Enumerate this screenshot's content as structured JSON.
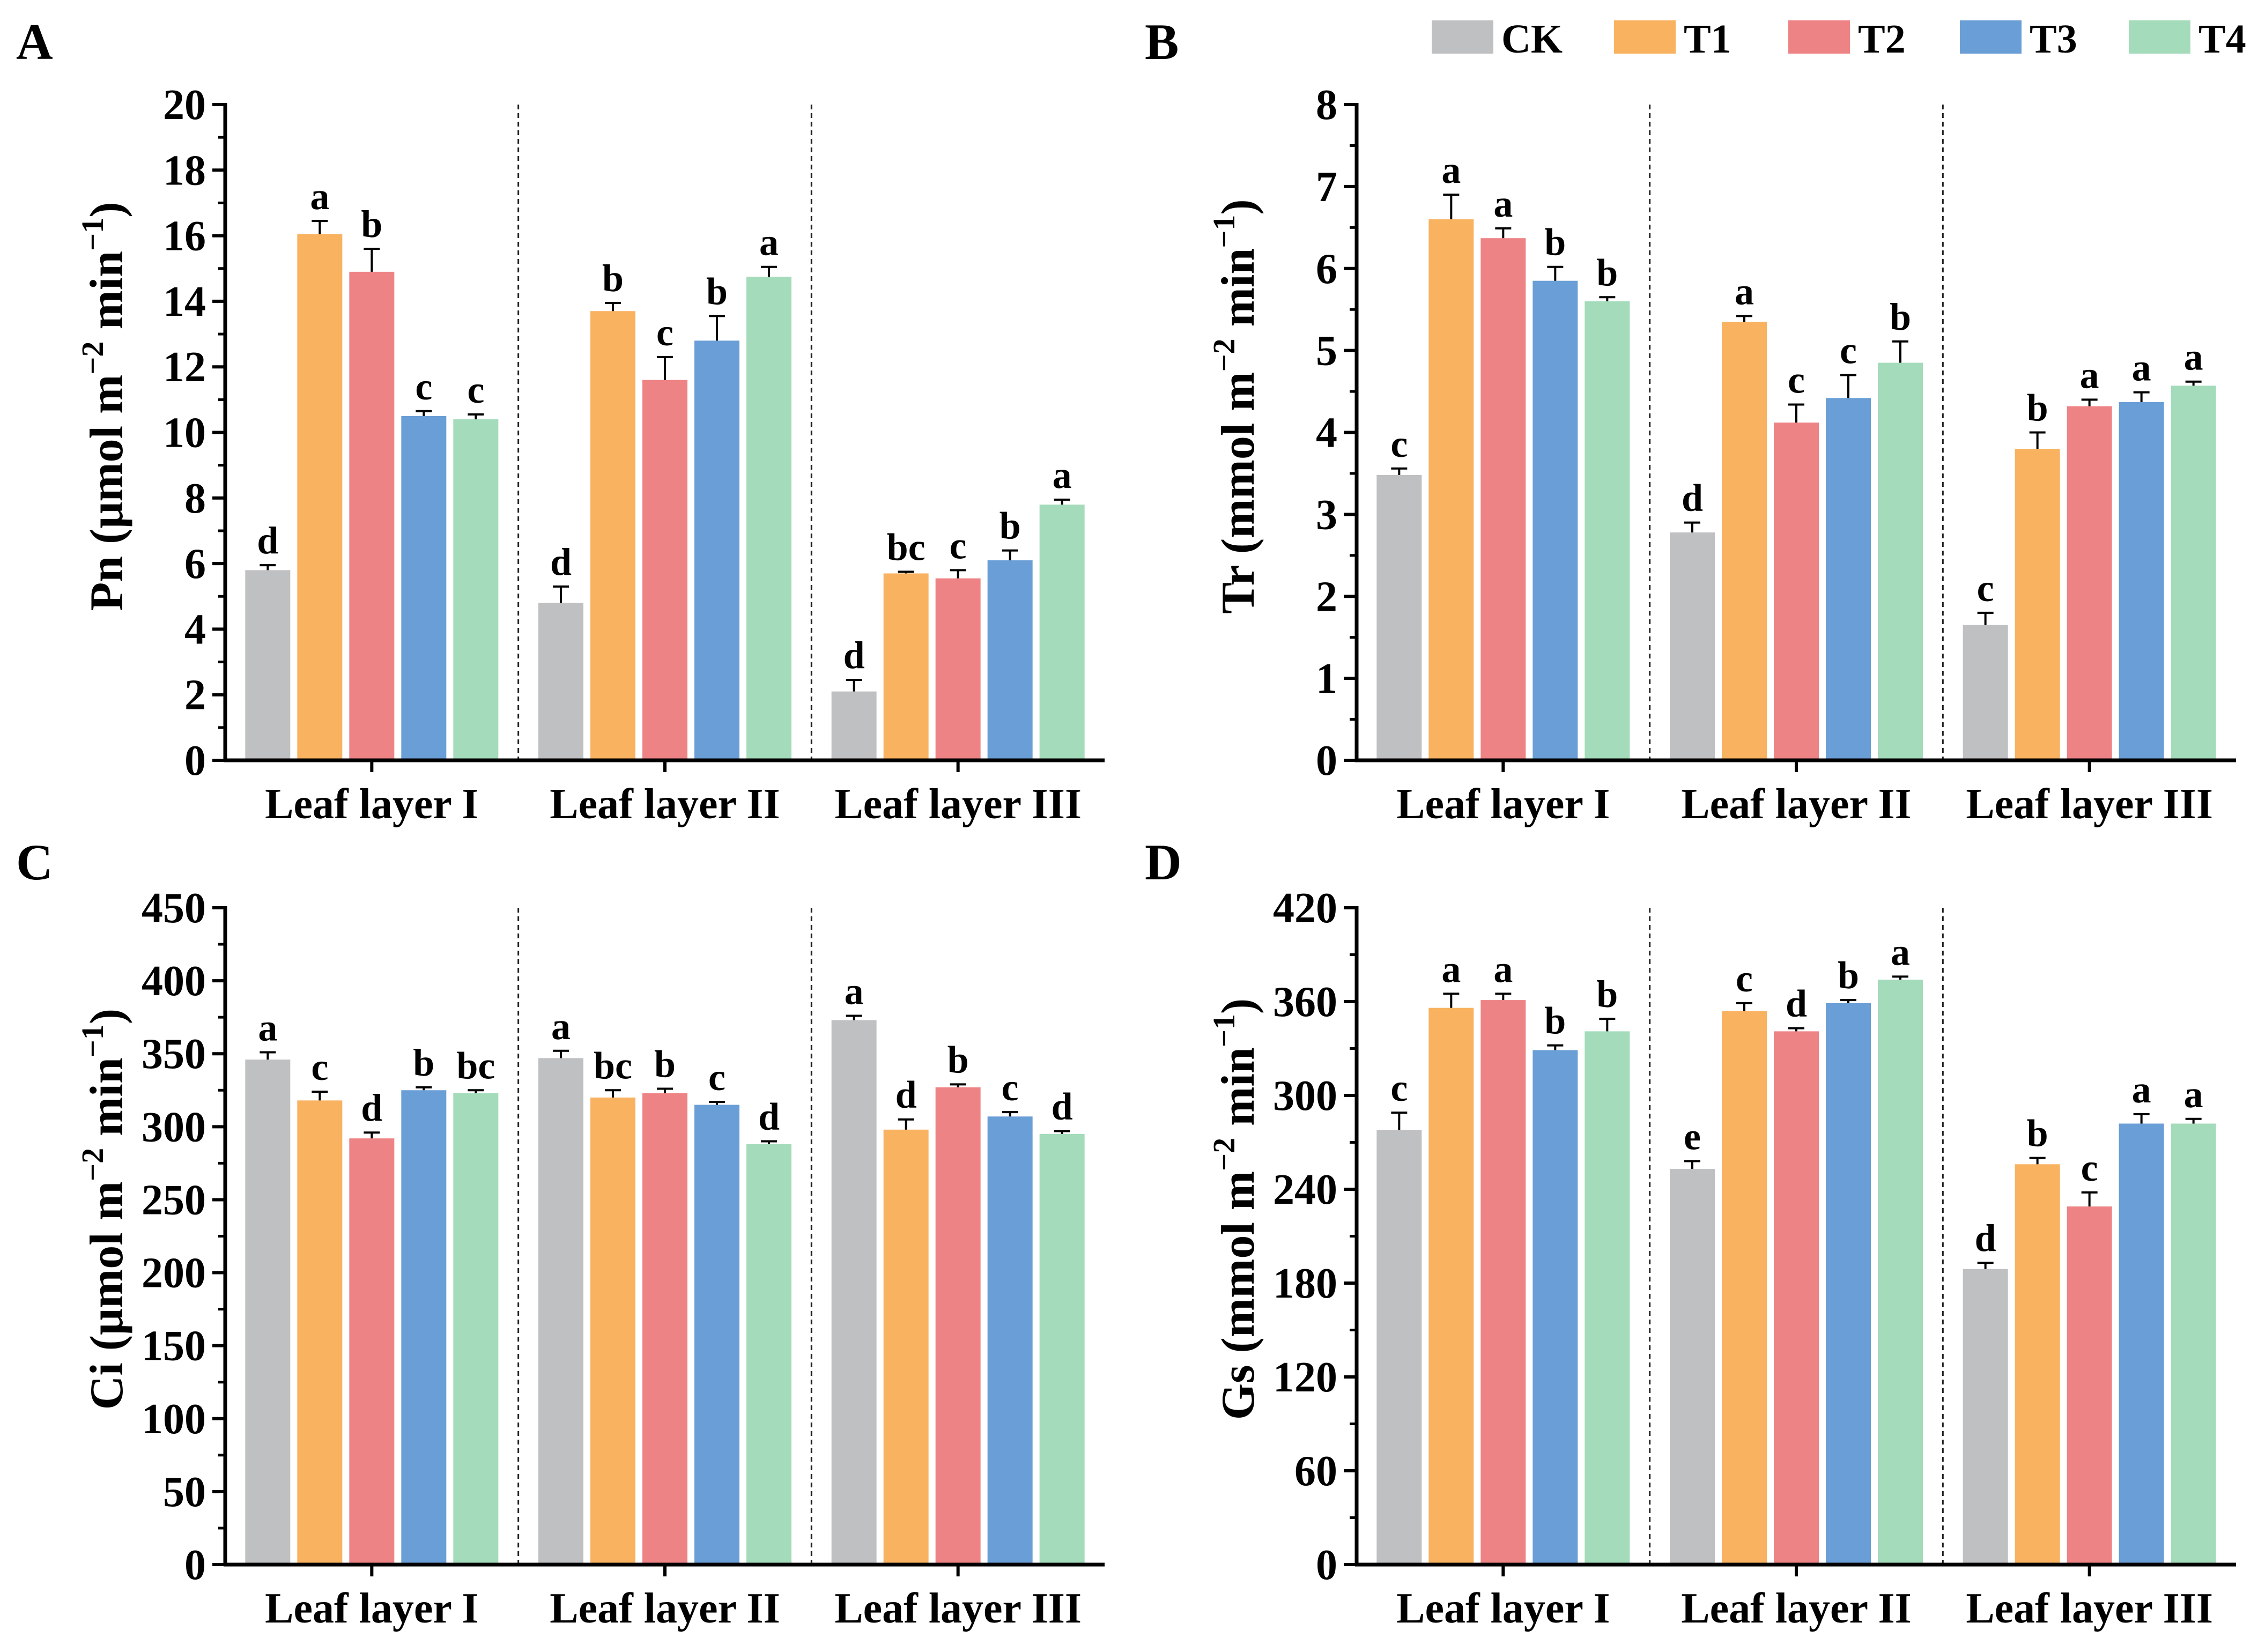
{
  "legend": [
    {
      "name": "CK",
      "color": "#BFC0C2"
    },
    {
      "name": "T1",
      "color": "#F9B260"
    },
    {
      "name": "T2",
      "color": "#EE8385"
    },
    {
      "name": "T3",
      "color": "#6A9ED6"
    },
    {
      "name": "T4",
      "color": "#A3DBBB"
    }
  ],
  "chart_data": [
    {
      "type": "bar",
      "panel": "A",
      "ylabel_main": "Pn (μmol m",
      "ylabel_sup1": "−2",
      "ylabel_mid": " min",
      "ylabel_sup2": "−1",
      "ylabel_end": ")",
      "ylim": [
        0,
        20
      ],
      "yticks": [
        0,
        2,
        4,
        6,
        8,
        10,
        12,
        14,
        16,
        18,
        20
      ],
      "yticklabels": [
        "0",
        "2",
        "4",
        "6",
        "8",
        "10",
        "12",
        "14",
        "16",
        "18",
        "20"
      ],
      "categories": [
        "Leaf layer I",
        "Leaf layer II",
        "Leaf layer III"
      ],
      "series": [
        {
          "name": "CK",
          "values": [
            5.8,
            4.8,
            2.1
          ],
          "errors": [
            0.15,
            0.5,
            0.35
          ],
          "letters": [
            "d",
            "d",
            "d"
          ]
        },
        {
          "name": "T1",
          "values": [
            16.05,
            13.7,
            5.7
          ],
          "errors": [
            0.4,
            0.25,
            0.05
          ],
          "letters": [
            "a",
            "b",
            "bc"
          ]
        },
        {
          "name": "T2",
          "values": [
            14.9,
            11.6,
            5.55
          ],
          "errors": [
            0.7,
            0.7,
            0.25
          ],
          "letters": [
            "b",
            "c",
            "c"
          ]
        },
        {
          "name": "T3",
          "values": [
            10.5,
            12.8,
            6.1
          ],
          "errors": [
            0.15,
            0.75,
            0.3
          ],
          "letters": [
            "c",
            "b",
            "b"
          ]
        },
        {
          "name": "T4",
          "values": [
            10.4,
            14.75,
            7.8
          ],
          "errors": [
            0.15,
            0.3,
            0.15
          ],
          "letters": [
            "c",
            "a",
            "a"
          ]
        }
      ]
    },
    {
      "type": "bar",
      "panel": "B",
      "ylabel_main": "Tr (mmol m",
      "ylabel_sup1": "−2",
      "ylabel_mid": " min",
      "ylabel_sup2": "−1",
      "ylabel_end": ")",
      "ylim": [
        0,
        8
      ],
      "yticks": [
        0,
        1,
        2,
        3,
        4,
        5,
        6,
        7,
        8
      ],
      "yticklabels": [
        "0",
        "1",
        "2",
        "3",
        "4",
        "5",
        "6",
        "7",
        "8"
      ],
      "categories": [
        "Leaf layer I",
        "Leaf layer II",
        "Leaf layer III"
      ],
      "series": [
        {
          "name": "CK",
          "values": [
            3.48,
            2.78,
            1.65
          ],
          "errors": [
            0.08,
            0.12,
            0.15
          ],
          "letters": [
            "c",
            "d",
            "c"
          ]
        },
        {
          "name": "T1",
          "values": [
            6.6,
            5.35,
            3.8
          ],
          "errors": [
            0.3,
            0.07,
            0.2
          ],
          "letters": [
            "a",
            "a",
            "b"
          ]
        },
        {
          "name": "T2",
          "values": [
            6.37,
            4.12,
            4.32
          ],
          "errors": [
            0.12,
            0.22,
            0.08
          ],
          "letters": [
            "a",
            "c",
            "a"
          ]
        },
        {
          "name": "T3",
          "values": [
            5.85,
            4.42,
            4.37
          ],
          "errors": [
            0.17,
            0.28,
            0.12
          ],
          "letters": [
            "b",
            "c",
            "a"
          ]
        },
        {
          "name": "T4",
          "values": [
            5.6,
            4.85,
            4.57
          ],
          "errors": [
            0.05,
            0.26,
            0.05
          ],
          "letters": [
            "b",
            "b",
            "a"
          ]
        }
      ]
    },
    {
      "type": "bar",
      "panel": "C",
      "ylabel_main": "Ci (μmol m",
      "ylabel_sup1": "−2",
      "ylabel_mid": " min",
      "ylabel_sup2": "−1",
      "ylabel_end": ")",
      "ylim": [
        0,
        450
      ],
      "yticks": [
        0,
        50,
        100,
        150,
        200,
        250,
        300,
        350,
        400,
        450
      ],
      "yticklabels": [
        "0",
        "50",
        "100",
        "150",
        "200",
        "250",
        "300",
        "350",
        "400",
        "450"
      ],
      "categories": [
        "Leaf layer I",
        "Leaf layer II",
        "Leaf layer III"
      ],
      "series": [
        {
          "name": "CK",
          "values": [
            346,
            347,
            373
          ],
          "errors": [
            5,
            5,
            3
          ],
          "letters": [
            "a",
            "a",
            "a"
          ]
        },
        {
          "name": "T1",
          "values": [
            318,
            320,
            298
          ],
          "errors": [
            6,
            5,
            7
          ],
          "letters": [
            "c",
            "bc",
            "d"
          ]
        },
        {
          "name": "T2",
          "values": [
            292,
            323,
            327
          ],
          "errors": [
            4,
            3,
            2
          ],
          "letters": [
            "d",
            "b",
            "b"
          ]
        },
        {
          "name": "T3",
          "values": [
            325,
            315,
            307
          ],
          "errors": [
            2,
            2,
            3
          ],
          "letters": [
            "b",
            "c",
            "c"
          ]
        },
        {
          "name": "T4",
          "values": [
            323,
            288,
            295
          ],
          "errors": [
            2,
            2,
            2
          ],
          "letters": [
            "bc",
            "d",
            "d"
          ]
        }
      ]
    },
    {
      "type": "bar",
      "panel": "D",
      "ylabel_main": "Gs (mmol m",
      "ylabel_sup1": "−2",
      "ylabel_mid": " min",
      "ylabel_sup2": "−1",
      "ylabel_end": ")",
      "ylim": [
        0,
        420
      ],
      "yticks": [
        0,
        60,
        120,
        180,
        240,
        300,
        360,
        420
      ],
      "yticklabels": [
        "0",
        "60",
        "120",
        "180",
        "240",
        "300",
        "360",
        "420"
      ],
      "categories": [
        "Leaf layer I",
        "Leaf layer II",
        "Leaf layer III"
      ],
      "series": [
        {
          "name": "CK",
          "values": [
            278,
            253,
            189
          ],
          "errors": [
            11,
            5,
            4
          ],
          "letters": [
            "c",
            "e",
            "d"
          ]
        },
        {
          "name": "T1",
          "values": [
            356,
            354,
            256
          ],
          "errors": [
            9,
            5,
            4
          ],
          "letters": [
            "a",
            "c",
            "b"
          ]
        },
        {
          "name": "T2",
          "values": [
            361,
            341,
            229
          ],
          "errors": [
            4,
            2,
            9
          ],
          "letters": [
            "a",
            "d",
            "c"
          ]
        },
        {
          "name": "T3",
          "values": [
            329,
            359,
            282
          ],
          "errors": [
            3,
            2,
            6
          ],
          "letters": [
            "b",
            "b",
            "a"
          ]
        },
        {
          "name": "T4",
          "values": [
            341,
            374,
            282
          ],
          "errors": [
            8,
            2,
            3
          ],
          "letters": [
            "b",
            "a",
            "a"
          ]
        }
      ]
    }
  ]
}
